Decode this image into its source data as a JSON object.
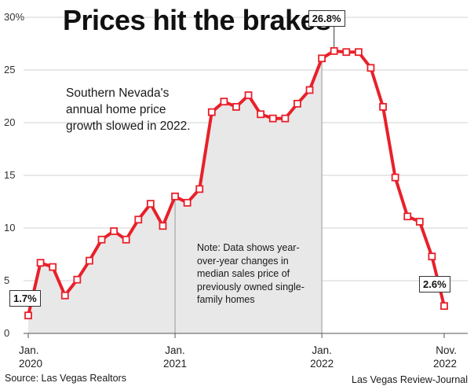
{
  "chart_data": {
    "type": "line",
    "title": "Prices hit the brakes",
    "subtitle": "Southern Nevada's annual home price growth slowed in 2022.",
    "note": "Note: Data shows year-over-year changes in median sales price of previously owned single-family homes",
    "source": "Source: Las Vegas Realtors",
    "credit": "Las Vegas Review-Journal",
    "ylim": [
      0,
      30
    ],
    "y_ticks": [
      "0",
      "5",
      "10",
      "15",
      "20",
      "25",
      "30%"
    ],
    "x_ticks": [
      {
        "line1": "Jan.",
        "line2": "2020"
      },
      {
        "line1": "Jan.",
        "line2": "2021"
      },
      {
        "line1": "Jan.",
        "line2": "2022"
      },
      {
        "line1": "Nov.",
        "line2": "2022"
      }
    ],
    "callouts": {
      "first": "1.7%",
      "peak": "26.8%",
      "last": "2.6%"
    },
    "series": [
      {
        "values": [
          1.7,
          6.7,
          6.3,
          3.6,
          5.1,
          6.9,
          8.9,
          9.7,
          8.9,
          10.8,
          12.3,
          10.2,
          13.0,
          12.4,
          13.7,
          21.0,
          22.0,
          21.5,
          22.6,
          20.8,
          20.4,
          20.4,
          21.8,
          23.1,
          26.1,
          26.8,
          26.7,
          26.7,
          25.2,
          21.5,
          14.8,
          11.1,
          10.6,
          7.3,
          2.6
        ]
      }
    ],
    "colors": {
      "line": "#e8202a",
      "shade": "#e8e8e8",
      "grid": "#d0d0d0"
    }
  }
}
